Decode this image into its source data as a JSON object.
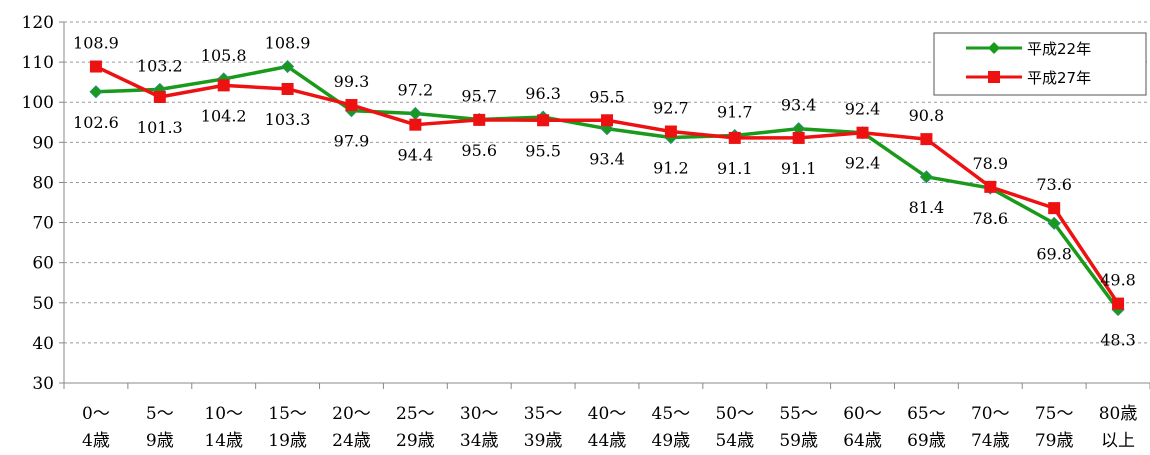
{
  "chart_data": {
    "type": "line",
    "title": "",
    "xlabel": "",
    "ylabel": "",
    "ylim": [
      30,
      120
    ],
    "yticks": [
      30,
      40,
      50,
      60,
      70,
      80,
      90,
      100,
      110,
      120
    ],
    "grid": true,
    "legend_position": "top-right",
    "categories": [
      [
        "0～",
        "4歳"
      ],
      [
        "5～",
        "9歳"
      ],
      [
        "10～",
        "14歳"
      ],
      [
        "15～",
        "19歳"
      ],
      [
        "20～",
        "24歳"
      ],
      [
        "25～",
        "29歳"
      ],
      [
        "30～",
        "34歳"
      ],
      [
        "35～",
        "39歳"
      ],
      [
        "40～",
        "44歳"
      ],
      [
        "45～",
        "49歳"
      ],
      [
        "50～",
        "54歳"
      ],
      [
        "55～",
        "59歳"
      ],
      [
        "60～",
        "64歳"
      ],
      [
        "65～",
        "69歳"
      ],
      [
        "70～",
        "74歳"
      ],
      [
        "75～",
        "79歳"
      ],
      [
        "80歳",
        "以上"
      ]
    ],
    "series": [
      {
        "name": "平成22年",
        "color": "#1a9a1a",
        "marker": "diamond",
        "values": [
          102.6,
          103.2,
          105.8,
          108.9,
          97.9,
          97.2,
          95.7,
          96.3,
          93.4,
          91.2,
          91.7,
          93.4,
          92.4,
          81.4,
          78.6,
          69.8,
          48.3
        ],
        "label_pos": [
          "below",
          "above",
          "above",
          "above",
          "below",
          "above",
          "above",
          "above",
          "below",
          "below",
          "above",
          "above",
          "below",
          "below",
          "below",
          "below",
          "below"
        ]
      },
      {
        "name": "平成27年",
        "color": "#ee1111",
        "marker": "square",
        "values": [
          108.9,
          101.3,
          104.2,
          103.3,
          99.3,
          94.4,
          95.6,
          95.5,
          95.5,
          92.7,
          91.1,
          91.1,
          92.4,
          90.8,
          78.9,
          73.6,
          49.8
        ],
        "label_pos": [
          "above",
          "below",
          "below",
          "below",
          "above",
          "below",
          "below",
          "below",
          "above",
          "above",
          "below",
          "below",
          "above",
          "above",
          "above",
          "above",
          "above"
        ]
      }
    ]
  }
}
